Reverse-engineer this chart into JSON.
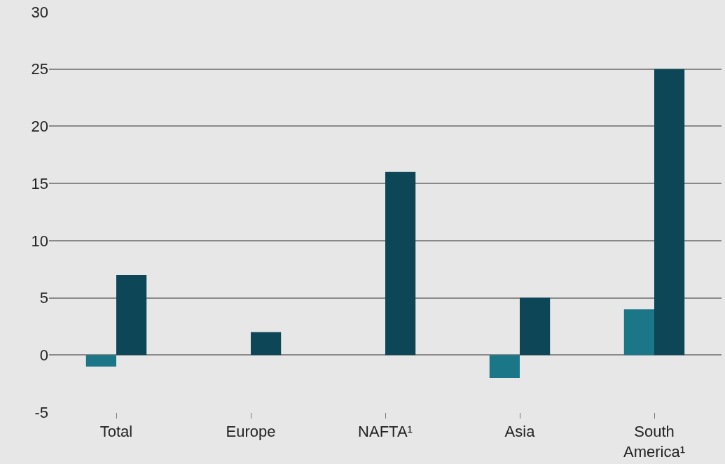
{
  "chart_data": {
    "type": "bar",
    "categories": [
      "Total",
      "Europe",
      "NAFTA¹",
      "Asia",
      "South America¹"
    ],
    "series": [
      {
        "color": "#1b7688",
        "values": [
          -1,
          0,
          0,
          -2,
          4
        ]
      },
      {
        "color": "#0d4657",
        "values": [
          7,
          2,
          16,
          5,
          25
        ]
      }
    ],
    "ylim": [
      -5,
      30
    ],
    "yticks": [
      -5,
      0,
      5,
      10,
      15,
      20,
      25,
      30
    ],
    "grid": "y",
    "legend": false
  }
}
